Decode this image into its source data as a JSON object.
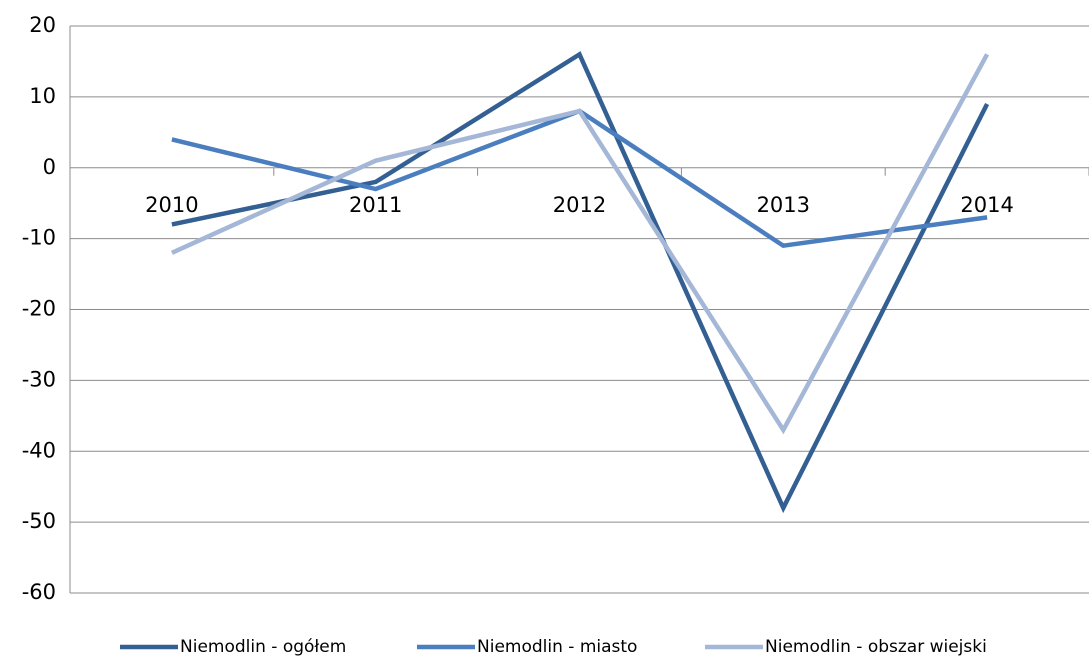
{
  "chart_data": {
    "type": "line",
    "categories": [
      "2010",
      "2011",
      "2012",
      "2013",
      "2014"
    ],
    "series": [
      {
        "name": "Niemodlin - ogółem",
        "color": "#335f92",
        "values": [
          -8,
          -2,
          16,
          -48,
          9
        ]
      },
      {
        "name": "Niemodlin - miasto",
        "color": "#4a7ebf",
        "values": [
          4,
          -3,
          8,
          -11,
          -7
        ]
      },
      {
        "name": "Niemodlin - obszar wiejski",
        "color": "#a5b7d7",
        "values": [
          -12,
          1,
          8,
          -37,
          16
        ]
      }
    ],
    "ylim": [
      -60,
      20
    ],
    "yticks": [
      -60,
      -50,
      -40,
      -30,
      -20,
      -10,
      0,
      10,
      20
    ],
    "grid": true,
    "legend": "bottom"
  }
}
